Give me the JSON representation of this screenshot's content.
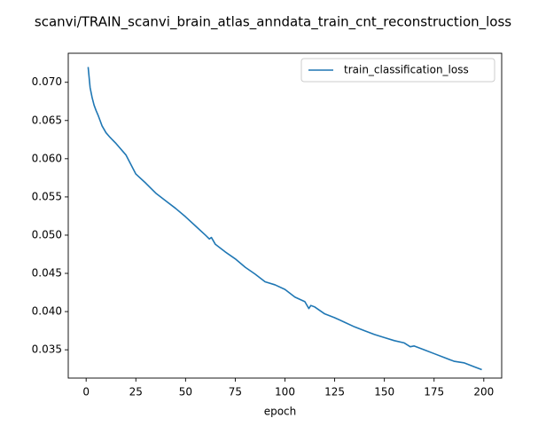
{
  "chart_data": {
    "type": "line",
    "title": "scanvi/TRAIN_scanvi_brain_atlas_anndata_train_cnt_reconstruction_loss",
    "xlabel": "epoch",
    "ylabel": "",
    "xlim": [
      -9,
      209
    ],
    "ylim": [
      0.0313,
      0.0738
    ],
    "x_ticks": [
      0,
      25,
      50,
      75,
      100,
      125,
      150,
      175,
      200
    ],
    "x_tick_labels": [
      "0",
      "25",
      "50",
      "75",
      "100",
      "125",
      "150",
      "175",
      "200"
    ],
    "y_ticks": [
      0.035,
      0.04,
      0.045,
      0.05,
      0.055,
      0.06,
      0.065,
      0.07
    ],
    "y_tick_labels": [
      "0.035",
      "0.040",
      "0.045",
      "0.050",
      "0.055",
      "0.060",
      "0.065",
      "0.070"
    ],
    "grid": false,
    "legend_position": "upper right",
    "series": [
      {
        "name": "train_classification_loss",
        "color": "#1f77b4",
        "x": [
          1,
          2,
          3,
          4,
          5,
          6,
          7,
          8,
          10,
          12,
          15,
          20,
          25,
          30,
          35,
          40,
          45,
          50,
          55,
          60,
          62,
          63,
          65,
          70,
          75,
          80,
          85,
          90,
          95,
          100,
          105,
          110,
          112,
          113,
          115,
          120,
          125,
          130,
          135,
          140,
          145,
          150,
          155,
          160,
          163,
          165,
          170,
          175,
          180,
          185,
          190,
          195,
          199
        ],
        "y": [
          0.072,
          0.0693,
          0.068,
          0.067,
          0.0663,
          0.0657,
          0.065,
          0.0643,
          0.0634,
          0.0628,
          0.062,
          0.0605,
          0.058,
          0.0568,
          0.0555,
          0.0545,
          0.0535,
          0.0524,
          0.0512,
          0.05,
          0.0495,
          0.0497,
          0.0488,
          0.0478,
          0.0469,
          0.0458,
          0.0449,
          0.0439,
          0.0435,
          0.0429,
          0.0419,
          0.0413,
          0.0404,
          0.0408,
          0.0406,
          0.0397,
          0.0392,
          0.0386,
          0.038,
          0.0375,
          0.037,
          0.0366,
          0.0362,
          0.0359,
          0.0354,
          0.0355,
          0.035,
          0.0345,
          0.034,
          0.0335,
          0.0333,
          0.0328,
          0.0324
        ]
      }
    ]
  }
}
